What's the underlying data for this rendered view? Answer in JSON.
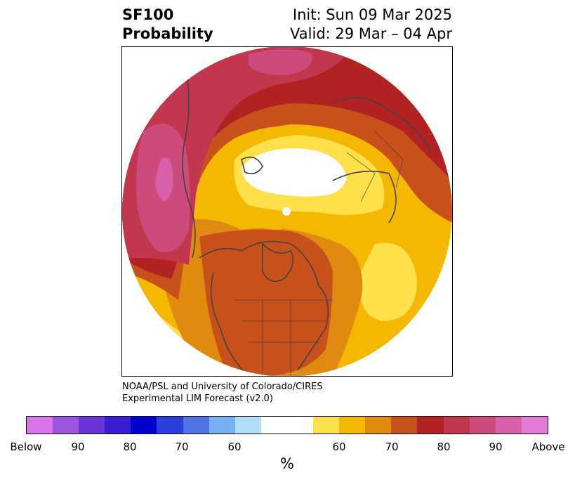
{
  "title": {
    "left_line1": "SF100",
    "left_line2": "Probability",
    "right_line1": "Init: Sun 09 Mar 2025",
    "right_line2": "Valid: 29 Mar – 04 Apr"
  },
  "credit": {
    "line1": "NOAA/PSL and University of Colorado/CIRES",
    "line2": "Experimental LIM Forecast (v2.0)"
  },
  "colorbar": {
    "colors": [
      "#d874e8",
      "#9b55e0",
      "#6a35d8",
      "#3a1ed4",
      "#0000cc",
      "#2a3fdc",
      "#4e74e6",
      "#74b0f2",
      "#b0def8",
      "#ffffff",
      "#ffe04a",
      "#f4b800",
      "#e08a10",
      "#c8501a",
      "#b22222",
      "#c23650",
      "#cc4a7c",
      "#d860a8",
      "#e47ad8"
    ],
    "tick_labels": [
      "Below",
      "90",
      "80",
      "70",
      "60",
      "60",
      "70",
      "80",
      "90",
      "Above"
    ],
    "unit": "%"
  },
  "map": {
    "colors": {
      "above90": "#d860a8",
      "above80": "#cc4a7c",
      "above75": "#c23650",
      "above70": "#b22222",
      "above65": "#c8501a",
      "above60": "#e08a10",
      "above55": "#f4b800",
      "above50": "#ffe04a",
      "neutral": "#ffffff",
      "border": "#444444"
    }
  }
}
